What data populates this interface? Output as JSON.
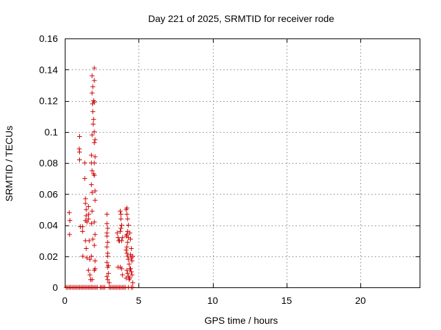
{
  "chart_data": {
    "type": "scatter",
    "title": "Day 221 of 2025, SRMTID for receiver rode",
    "xlabel": "GPS time / hours",
    "ylabel": "SRMTID / TECUs",
    "xlim": [
      0,
      24
    ],
    "ylim": [
      0,
      0.16
    ],
    "xticks": [
      0,
      5,
      10,
      15,
      20
    ],
    "xtick_labels": [
      "0",
      "5",
      "10",
      "15",
      "20"
    ],
    "yticks": [
      0,
      0.02,
      0.04,
      0.06,
      0.08,
      0.1,
      0.12,
      0.14,
      0.16
    ],
    "ytick_labels": [
      "0",
      "0.02",
      "0.04",
      "0.06",
      "0.08",
      "0.1",
      "0.12",
      "0.14",
      "0.16"
    ],
    "grid": true,
    "marker": "plus",
    "color": "#cc0000",
    "series": [
      {
        "name": "SRMTID",
        "points": [
          [
            0.1,
            0
          ],
          [
            0.2,
            0
          ],
          [
            0.3,
            0
          ],
          [
            0.4,
            0
          ],
          [
            0.5,
            0
          ],
          [
            0.6,
            0
          ],
          [
            0.7,
            0
          ],
          [
            0.8,
            0
          ],
          [
            0.9,
            0
          ],
          [
            1.0,
            0
          ],
          [
            1.1,
            0
          ],
          [
            1.2,
            0
          ],
          [
            1.3,
            0
          ],
          [
            1.4,
            0
          ],
          [
            1.5,
            0
          ],
          [
            1.6,
            0
          ],
          [
            1.7,
            0
          ],
          [
            1.8,
            0
          ],
          [
            1.9,
            0
          ],
          [
            2.0,
            0
          ],
          [
            2.1,
            0
          ],
          [
            2.2,
            0
          ],
          [
            2.4,
            0
          ],
          [
            2.5,
            0
          ],
          [
            2.6,
            0
          ],
          [
            2.7,
            0
          ],
          [
            3.0,
            0
          ],
          [
            3.1,
            0
          ],
          [
            3.2,
            0
          ],
          [
            3.3,
            0
          ],
          [
            3.4,
            0
          ],
          [
            3.5,
            0
          ],
          [
            3.6,
            0
          ],
          [
            3.7,
            0
          ],
          [
            3.8,
            0
          ],
          [
            3.9,
            0
          ],
          [
            4.0,
            0
          ],
          [
            4.1,
            0
          ],
          [
            4.3,
            0
          ],
          [
            4.5,
            0
          ],
          [
            4.6,
            0
          ],
          [
            0.3,
            0.048
          ],
          [
            0.35,
            0.043
          ],
          [
            0.32,
            0.034
          ],
          [
            1.0,
            0.097
          ],
          [
            0.98,
            0.089
          ],
          [
            1.0,
            0.087
          ],
          [
            1.0,
            0.082
          ],
          [
            1.05,
            0.039
          ],
          [
            1.2,
            0.039
          ],
          [
            1.2,
            0.036
          ],
          [
            1.22,
            0.02
          ],
          [
            1.35,
            0.08
          ],
          [
            1.35,
            0.07
          ],
          [
            1.4,
            0.057
          ],
          [
            1.4,
            0.054
          ],
          [
            1.45,
            0.05
          ],
          [
            1.45,
            0.046
          ],
          [
            1.4,
            0.043
          ],
          [
            1.5,
            0.042
          ],
          [
            1.4,
            0.03
          ],
          [
            1.45,
            0.025
          ],
          [
            1.5,
            0.019
          ],
          [
            1.6,
            0.052
          ],
          [
            1.62,
            0.047
          ],
          [
            1.6,
            0.044
          ],
          [
            1.65,
            0.03
          ],
          [
            1.7,
            0.018
          ],
          [
            1.6,
            0.011
          ],
          [
            1.7,
            0.008
          ],
          [
            1.75,
            0.005
          ],
          [
            1.85,
            0.136
          ],
          [
            1.9,
            0.129
          ],
          [
            1.85,
            0.125
          ],
          [
            1.88,
            0.118
          ],
          [
            1.9,
            0.113
          ],
          [
            1.92,
            0.105
          ],
          [
            1.85,
            0.098
          ],
          [
            1.8,
            0.085
          ],
          [
            1.8,
            0.08
          ],
          [
            1.85,
            0.075
          ],
          [
            1.8,
            0.066
          ],
          [
            1.85,
            0.061
          ],
          [
            1.85,
            0.049
          ],
          [
            1.8,
            0.041
          ],
          [
            1.9,
            0.031
          ],
          [
            1.8,
            0.02
          ],
          [
            1.85,
            0.005
          ],
          [
            2.0,
            0.141
          ],
          [
            2.0,
            0.133
          ],
          [
            1.95,
            0.12
          ],
          [
            2.0,
            0.119
          ],
          [
            1.95,
            0.108
          ],
          [
            2.0,
            0.1
          ],
          [
            2.0,
            0.093
          ],
          [
            2.05,
            0.095
          ],
          [
            2.05,
            0.084
          ],
          [
            2.0,
            0.08
          ],
          [
            2.0,
            0.072
          ],
          [
            1.95,
            0.073
          ],
          [
            2.05,
            0.062
          ],
          [
            2.05,
            0.056
          ],
          [
            2.0,
            0.042
          ],
          [
            2.05,
            0.034
          ],
          [
            2.0,
            0.027
          ],
          [
            2.05,
            0.017
          ],
          [
            2.05,
            0.012
          ],
          [
            2.0,
            0.011
          ],
          [
            2.85,
            0.047
          ],
          [
            2.85,
            0.041
          ],
          [
            2.9,
            0.038
          ],
          [
            2.85,
            0.035
          ],
          [
            2.9,
            0.029
          ],
          [
            2.85,
            0.026
          ],
          [
            2.9,
            0.02
          ],
          [
            2.85,
            0.016
          ],
          [
            2.9,
            0.013
          ],
          [
            2.95,
            0.009
          ],
          [
            2.85,
            0.007
          ],
          [
            2.9,
            0.005
          ],
          [
            3.0,
            0.003
          ],
          [
            2.95,
            0.014
          ],
          [
            2.9,
            0.022
          ],
          [
            2.85,
            0.033
          ],
          [
            3.55,
            0.035
          ],
          [
            3.6,
            0.032
          ],
          [
            3.65,
            0.03
          ],
          [
            3.7,
            0.03
          ],
          [
            3.6,
            0.013
          ],
          [
            3.75,
            0.013
          ],
          [
            3.75,
            0.049
          ],
          [
            3.8,
            0.047
          ],
          [
            3.8,
            0.044
          ],
          [
            3.85,
            0.04
          ],
          [
            3.8,
            0.038
          ],
          [
            3.9,
            0.032
          ],
          [
            3.85,
            0.03
          ],
          [
            3.75,
            0.036
          ],
          [
            3.85,
            0.012
          ],
          [
            3.9,
            0.008
          ],
          [
            4.15,
            0.05
          ],
          [
            4.2,
            0.051
          ],
          [
            4.2,
            0.047
          ],
          [
            4.25,
            0.044
          ],
          [
            4.3,
            0.04
          ],
          [
            4.25,
            0.036
          ],
          [
            4.2,
            0.034
          ],
          [
            4.15,
            0.033
          ],
          [
            4.3,
            0.032
          ],
          [
            4.25,
            0.029
          ],
          [
            4.2,
            0.026
          ],
          [
            4.15,
            0.024
          ],
          [
            4.2,
            0.022
          ],
          [
            4.25,
            0.02
          ],
          [
            4.3,
            0.018
          ],
          [
            4.35,
            0.015
          ],
          [
            4.4,
            0.012
          ],
          [
            4.2,
            0.011
          ],
          [
            4.25,
            0.009
          ],
          [
            4.3,
            0.007
          ],
          [
            4.15,
            0.006
          ],
          [
            4.35,
            0.005
          ],
          [
            4.4,
            0.035
          ],
          [
            4.45,
            0.031
          ],
          [
            4.5,
            0.025
          ],
          [
            4.45,
            0.021
          ],
          [
            4.5,
            0.019
          ],
          [
            4.55,
            0.017
          ],
          [
            4.6,
            0.02
          ],
          [
            4.45,
            0.012
          ],
          [
            4.5,
            0.01
          ],
          [
            4.55,
            0.008
          ],
          [
            4.4,
            0.006
          ],
          [
            4.6,
            0.003
          ]
        ]
      }
    ]
  }
}
